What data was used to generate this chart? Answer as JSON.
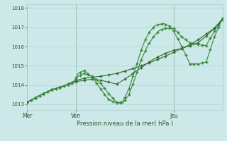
{
  "xlabel": "Pression niveau de la mer( hPa )",
  "ylim": [
    1012.7,
    1018.2
  ],
  "xlim": [
    0,
    96
  ],
  "yticks": [
    1013,
    1014,
    1015,
    1016,
    1017,
    1018
  ],
  "xtick_positions": [
    0,
    24,
    72
  ],
  "xtick_labels": [
    "Mer",
    "Ven",
    "Jeu"
  ],
  "bg_color": "#cce8e8",
  "grid_color": "#aacccc",
  "dark_green": "#2d6b2d",
  "mid_green": "#3a8a3a",
  "s1_x": [
    0,
    5,
    12,
    18,
    23,
    28,
    32,
    36,
    40,
    44,
    48,
    52,
    56,
    60,
    64,
    68,
    72,
    76,
    80,
    84,
    88,
    92,
    96
  ],
  "s1_y": [
    1013.1,
    1013.4,
    1013.75,
    1013.95,
    1014.15,
    1014.25,
    1014.3,
    1014.25,
    1014.15,
    1014.05,
    1014.3,
    1014.6,
    1014.9,
    1015.2,
    1015.45,
    1015.65,
    1015.8,
    1015.9,
    1016.05,
    1016.2,
    1016.55,
    1016.95,
    1017.4
  ],
  "s2_x": [
    0,
    5,
    12,
    18,
    23,
    25,
    28,
    32,
    36,
    40,
    44,
    47,
    50,
    53,
    56,
    59,
    62,
    65,
    68,
    72,
    76,
    80,
    84,
    88,
    92,
    96
  ],
  "s2_y": [
    1013.1,
    1013.4,
    1013.75,
    1013.95,
    1014.15,
    1014.45,
    1014.6,
    1014.45,
    1014.1,
    1013.55,
    1013.1,
    1013.05,
    1013.5,
    1014.35,
    1015.3,
    1016.0,
    1016.5,
    1016.85,
    1016.95,
    1016.95,
    1016.5,
    1016.2,
    1016.1,
    1016.05,
    1016.8,
    1017.4
  ],
  "s3_x": [
    0,
    5,
    12,
    18,
    23,
    25,
    28,
    32,
    36,
    40,
    44,
    47,
    50,
    53,
    56,
    58,
    60,
    63,
    67,
    70,
    72,
    76,
    80,
    84,
    88,
    92,
    96
  ],
  "s3_y": [
    1013.1,
    1013.4,
    1013.75,
    1013.95,
    1014.15,
    1014.6,
    1014.75,
    1014.4,
    1013.8,
    1013.25,
    1013.05,
    1013.15,
    1013.8,
    1014.8,
    1015.8,
    1016.35,
    1016.75,
    1017.1,
    1017.2,
    1017.05,
    1016.8,
    1016.0,
    1015.1,
    1015.1,
    1015.2,
    1016.5,
    1017.45
  ],
  "s4_x": [
    0,
    5,
    12,
    18,
    23,
    28,
    36,
    44,
    52,
    60,
    68,
    72,
    76,
    80,
    84,
    88,
    92,
    96
  ],
  "s4_y": [
    1013.1,
    1013.4,
    1013.75,
    1013.95,
    1014.2,
    1014.35,
    1014.45,
    1014.6,
    1014.85,
    1015.15,
    1015.5,
    1015.7,
    1015.9,
    1016.1,
    1016.35,
    1016.65,
    1016.95,
    1017.45
  ],
  "vline_positions": [
    0,
    24,
    72
  ],
  "markevery_dense": 2,
  "markevery_sparse": 3
}
